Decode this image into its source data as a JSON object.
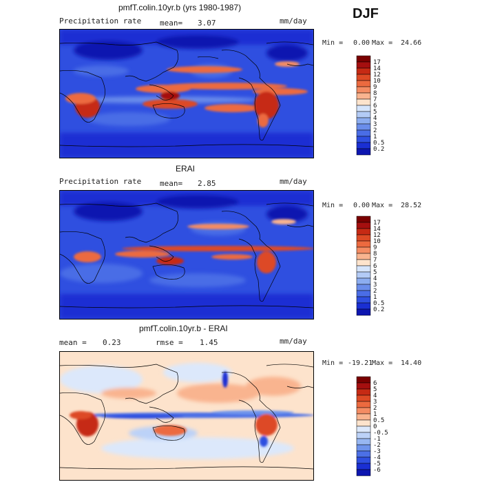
{
  "season": "DJF",
  "panels": [
    {
      "title": "pmfT.colin.10yr.b (yrs 1980-1987)",
      "variable": "Precipitation rate",
      "stat1_label": "mean=",
      "stat1_value": "3.07",
      "units": "mm/day",
      "min_label": "Min =",
      "min_value": "0.00",
      "max_label": "Max =",
      "max_value": "24.66",
      "kind": "abs"
    },
    {
      "title": "ERAI",
      "variable": "Precipitation rate",
      "stat1_label": "mean=",
      "stat1_value": "2.85",
      "units": "mm/day",
      "min_label": "Min =",
      "min_value": "0.00",
      "max_label": "Max =",
      "max_value": "28.52",
      "kind": "abs"
    },
    {
      "title": "pmfT.colin.10yr.b - ERAI",
      "stat1_label": "mean =",
      "stat1_value": "0.23",
      "stat2_label": "rmse =",
      "stat2_value": "1.45",
      "units": "mm/day",
      "min_label": "Min =",
      "min_value": "-19.21",
      "max_label": "Max =",
      "max_value": "14.40",
      "kind": "diff"
    }
  ],
  "colorbars": {
    "abs": {
      "labels": [
        "17",
        "14",
        "12",
        "10",
        "9",
        "8",
        "7",
        "6",
        "5",
        "4",
        "3",
        "2",
        "1",
        "0.5",
        "0.2"
      ],
      "colors": [
        "#7a0000",
        "#a50f0f",
        "#c62a14",
        "#dd4a25",
        "#ec6a3f",
        "#f48c63",
        "#f9b48f",
        "#fde3cc",
        "#d5e4fb",
        "#b3cbf6",
        "#8cadf0",
        "#6a8deb",
        "#4a6de6",
        "#2f4fe0",
        "#1a2fd3",
        "#0d16b0"
      ]
    },
    "diff": {
      "labels": [
        "6",
        "5",
        "4",
        "3",
        "2",
        "1",
        "0.5",
        "0",
        "-0.5",
        "-1",
        "-2",
        "-3",
        "-4",
        "-5",
        "-6"
      ],
      "colors": [
        "#7a0000",
        "#a50f0f",
        "#c62a14",
        "#dd4a25",
        "#ec6a3f",
        "#f48c63",
        "#f9b48f",
        "#fde3cc",
        "#dce8fb",
        "#bcd2f8",
        "#97b7f2",
        "#6f94ec",
        "#4c70e6",
        "#2f4fe0",
        "#1a2fd3",
        "#0d16b0"
      ]
    }
  }
}
